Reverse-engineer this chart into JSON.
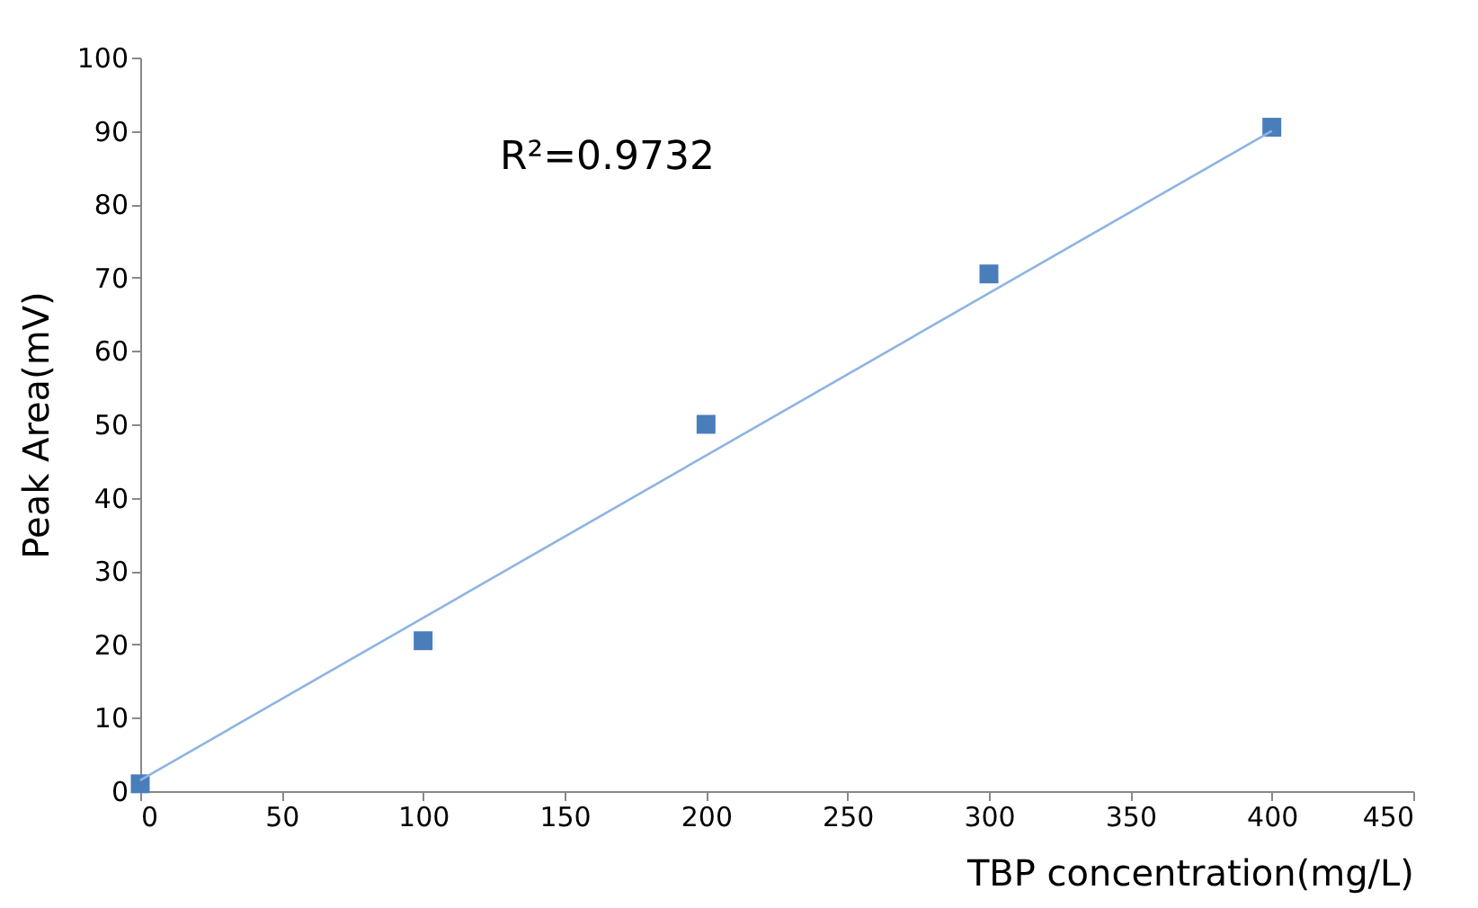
{
  "chart_data": {
    "type": "scatter",
    "xlabel": "TBP concentration(mg/L)",
    "ylabel": "Peak Area(mV)",
    "annotations": [
      "R²=0.9732"
    ],
    "x": [
      0,
      100,
      200,
      300,
      400
    ],
    "series": [
      {
        "color": "#4a7ebb",
        "marker": "square",
        "values": [
          1,
          20.5,
          50,
          70.5,
          90.5
        ]
      },
      {
        "type": "line",
        "color": "#8eb4e3",
        "x": [
          0,
          400
        ],
        "values": [
          1.5,
          90
        ]
      }
    ],
    "xlim": [
      0,
      450
    ],
    "xticks": [
      0,
      50,
      100,
      150,
      200,
      250,
      300,
      350,
      400,
      450
    ],
    "ylim": [
      0,
      100
    ],
    "yticks": [
      0,
      10,
      20,
      30,
      40,
      50,
      60,
      70,
      80,
      90,
      100
    ],
    "grid": false,
    "line_style": "solid"
  }
}
